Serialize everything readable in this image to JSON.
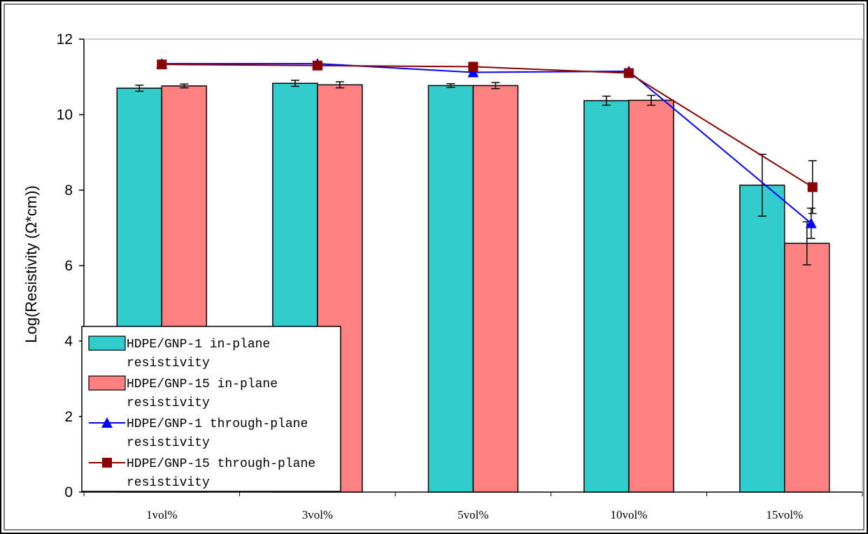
{
  "chart_data": {
    "type": "bar",
    "title": "",
    "xlabel": "",
    "ylabel": "Log(Resistivity (Ω*cm))",
    "ylim": [
      0,
      12
    ],
    "yticks": [
      0,
      2,
      4,
      6,
      8,
      10,
      12
    ],
    "grid": false,
    "legend_position": "bottom-left",
    "categories": [
      "1vol%",
      "3vol%",
      "5vol%",
      "10vol%",
      "15vol%"
    ],
    "series": [
      {
        "name": "HDPE/GNP-1 in-plane resistivity",
        "kind": "bar",
        "color": "#33CCCC",
        "values": [
          10.7,
          10.83,
          10.77,
          10.37,
          8.13
        ],
        "errors": [
          0.08,
          0.08,
          0.05,
          0.12,
          0.82
        ]
      },
      {
        "name": "HDPE/GNP-15 in-plane resistivity",
        "kind": "bar",
        "color": "#FF8080",
        "values": [
          10.76,
          10.79,
          10.77,
          10.38,
          6.59
        ],
        "errors": [
          0.05,
          0.08,
          0.08,
          0.13,
          0.57
        ]
      },
      {
        "name": "HDPE/GNP-1 through-plane resistivity",
        "kind": "line",
        "marker": "triangle",
        "color": "#0000FF",
        "values": [
          11.35,
          11.35,
          11.12,
          11.15,
          7.12
        ],
        "errors": [
          0.0,
          0.0,
          0.0,
          0.0,
          0.4
        ]
      },
      {
        "name": "HDPE/GNP-15 through-plane resistivity",
        "kind": "line",
        "marker": "square",
        "color": "#8B0000",
        "values": [
          11.33,
          11.3,
          11.27,
          11.1,
          8.08
        ],
        "errors": [
          0.0,
          0.0,
          0.0,
          0.0,
          0.7
        ]
      }
    ]
  }
}
